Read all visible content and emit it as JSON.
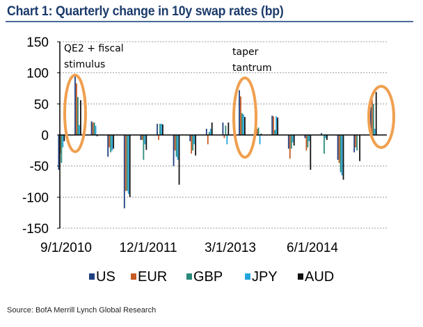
{
  "chart_data": {
    "type": "bar",
    "title": "Chart 1: Quarterly change in 10y swap rates (bp)",
    "xlabel": "",
    "ylabel": "",
    "ylim": [
      -150,
      150
    ],
    "yticks": [
      150,
      100,
      50,
      0,
      -50,
      -100,
      -150
    ],
    "grid": true,
    "legend": "bottom",
    "categories": [
      "9/1/2010",
      "12/1/2010",
      "3/1/2011",
      "6/1/2011",
      "9/1/2011",
      "12/1/2011",
      "3/1/2012",
      "6/1/2012",
      "9/1/2012",
      "12/1/2012",
      "3/1/2013",
      "6/1/2013",
      "9/1/2013",
      "12/1/2013",
      "3/1/2014",
      "6/1/2014",
      "9/1/2014",
      "12/1/2014",
      "3/1/2015",
      "6/1/2015"
    ],
    "xtick_labels": [
      "9/1/2010",
      "12/1/2011",
      "3/1/2013",
      "6/1/2014"
    ],
    "series": [
      {
        "name": "US",
        "color": "#1f3f7f",
        "values": [
          -56,
          98,
          22,
          -35,
          -118,
          -8,
          18,
          -50,
          -10,
          10,
          20,
          72,
          12,
          31,
          -22,
          -5,
          3,
          -40,
          -28,
          45
        ]
      },
      {
        "name": "EUR",
        "color": "#c55a22",
        "values": [
          -30,
          83,
          20,
          -20,
          -90,
          -8,
          -8,
          -25,
          -30,
          -15,
          -5,
          62,
          10,
          30,
          -38,
          -25,
          0,
          -45,
          -20,
          57
        ]
      },
      {
        "name": "GBP",
        "color": "#2a8a7a",
        "values": [
          -45,
          61,
          20,
          -28,
          -90,
          -40,
          18,
          -35,
          -25,
          5,
          15,
          35,
          12,
          8,
          -22,
          -20,
          -30,
          -60,
          -25,
          50
        ]
      },
      {
        "name": "JPY",
        "color": "#22a5dd",
        "values": [
          -20,
          16,
          15,
          -25,
          -95,
          -15,
          18,
          -40,
          -15,
          10,
          -15,
          33,
          -15,
          30,
          -12,
          -10,
          -5,
          -65,
          0,
          10
        ]
      },
      {
        "name": "AUD",
        "color": "#111111",
        "values": [
          -10,
          56,
          -2,
          -22,
          -100,
          -24,
          17,
          -80,
          -33,
          20,
          20,
          29,
          2,
          28,
          -17,
          -56,
          -8,
          -72,
          -42,
          69
        ]
      }
    ],
    "annotations": [
      {
        "text_lines": [
          "QE2 + fiscal",
          "stimulus"
        ],
        "highlight": "12/1/2010"
      },
      {
        "text_lines": [
          "taper",
          "tantrum"
        ],
        "highlight": "6/1/2013"
      },
      {
        "text_lines": [],
        "highlight": "6/1/2015"
      }
    ],
    "annotation_color": "#f0a050"
  },
  "source": "Source: BofA Merrill Lynch Global Research"
}
